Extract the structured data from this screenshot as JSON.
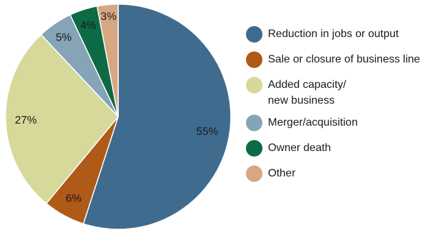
{
  "chart_data": {
    "type": "pie",
    "slices": [
      {
        "label": "Reduction in jobs or output",
        "value": 55,
        "color": "#3f6b8e",
        "text": "55%"
      },
      {
        "label": "Sale or closure of business line",
        "value": 6,
        "color": "#b05a18",
        "text": "6%"
      },
      {
        "label": "Added capacity/\nnew business",
        "value": 27,
        "color": "#d6d99a",
        "text": "27%"
      },
      {
        "label": "Merger/acquisition",
        "value": 5,
        "color": "#85a4b8",
        "text": "5%"
      },
      {
        "label": "Owner death",
        "value": 4,
        "color": "#0c6a45",
        "text": "4%"
      },
      {
        "label": "Other",
        "value": 3,
        "color": "#d7a784",
        "text": "3%"
      }
    ],
    "legend_position": "right"
  }
}
